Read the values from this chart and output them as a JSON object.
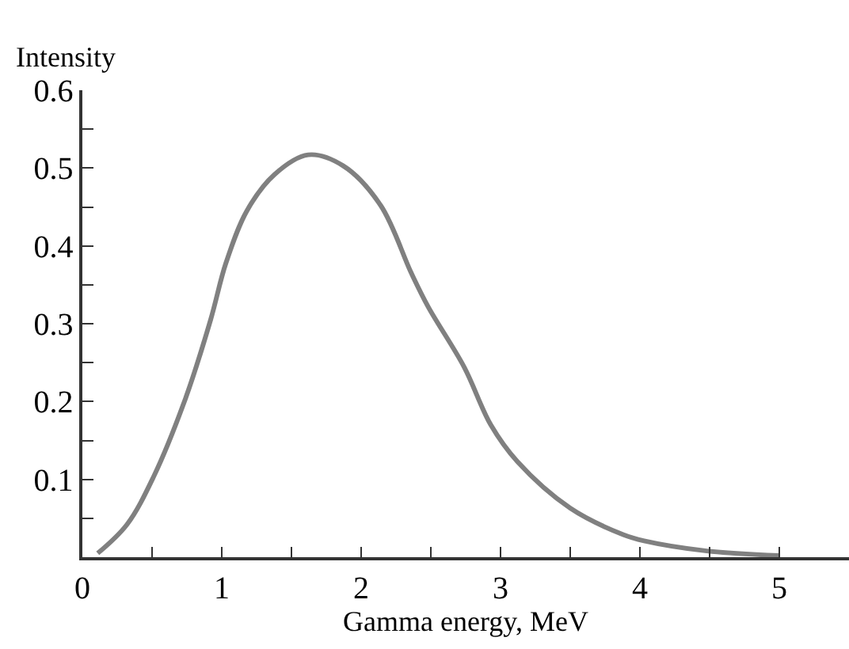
{
  "chart_data": {
    "type": "line",
    "xlabel": "Gamma energy, MeV",
    "ylabel": "Intensity",
    "x": [
      0.11,
      0.32,
      0.51,
      0.74,
      0.92,
      1.03,
      1.18,
      1.38,
      1.62,
      1.87,
      2.14,
      2.36,
      2.48,
      2.74,
      2.93,
      3.12,
      3.5,
      3.88,
      4.03,
      4.48,
      5.0
    ],
    "series": [
      {
        "color": "#808080",
        "values": [
          0.005,
          0.042,
          0.103,
          0.204,
          0.305,
          0.378,
          0.445,
          0.492,
          0.517,
          0.503,
          0.452,
          0.365,
          0.322,
          0.244,
          0.17,
          0.123,
          0.063,
          0.029,
          0.021,
          0.008,
          0.002
        ]
      }
    ],
    "xlim": [
      0,
      5.5
    ],
    "ylim": [
      0,
      0.6
    ],
    "xticks": [
      0,
      {
        "value": 0.5,
        "label": null
      },
      1,
      {
        "value": 1.5,
        "label": null
      },
      2,
      {
        "value": 2.5,
        "label": null
      },
      3,
      {
        "value": 3.5,
        "label": null
      },
      4,
      {
        "value": 4.5,
        "label": null
      },
      5
    ],
    "yticks": [
      {
        "value": 0.05,
        "label": null
      },
      0.1,
      {
        "value": 0.15,
        "label": null
      },
      0.2,
      {
        "value": 0.25,
        "label": null
      },
      0.3,
      {
        "value": 0.35,
        "label": null
      },
      0.4,
      {
        "value": 0.45,
        "label": null
      },
      0.5,
      {
        "value": 0.55,
        "label": null
      },
      0.6
    ],
    "marker": "none",
    "line_style": "solid"
  }
}
